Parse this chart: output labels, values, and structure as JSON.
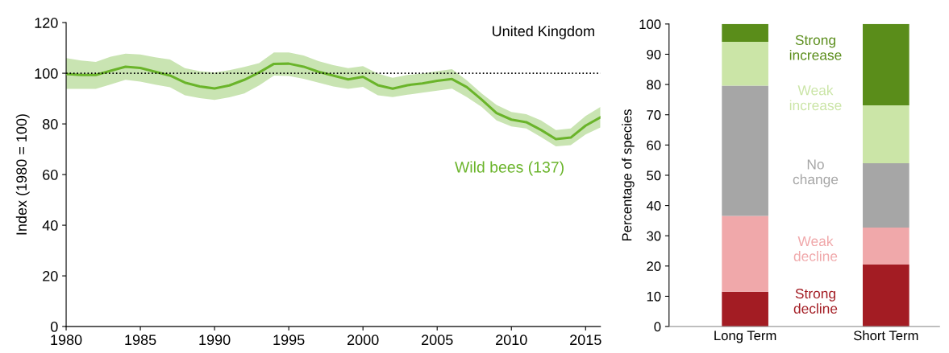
{
  "chart_data": [
    {
      "type": "line",
      "title": "United Kingdom",
      "ylabel": "Index (1980 = 100)",
      "x": [
        1980,
        1981,
        1982,
        1983,
        1984,
        1985,
        1986,
        1987,
        1988,
        1989,
        1990,
        1991,
        1992,
        1993,
        1994,
        1995,
        1996,
        1997,
        1998,
        1999,
        2000,
        2001,
        2002,
        2003,
        2004,
        2005,
        2006,
        2007,
        2008,
        2009,
        2010,
        2011,
        2012,
        2013,
        2014,
        2015,
        2016
      ],
      "series": [
        {
          "name": "Wild bees (137)",
          "color": "#6ab42a",
          "values": [
            99.7,
            99.3,
            99.3,
            101,
            102.6,
            102.1,
            100.6,
            99.1,
            96.3,
            94.8,
            94.0,
            95.2,
            97.4,
            100.3,
            103.7,
            103.8,
            102.6,
            100.6,
            99.1,
            97.6,
            98.6,
            95.3,
            93.9,
            95.3,
            96.0,
            97.0,
            97.7,
            94.5,
            89.6,
            84.3,
            81.7,
            80.7,
            77.6,
            74.0,
            74.6,
            79.3,
            82.6
          ],
          "upper": [
            106,
            105,
            104.5,
            106.5,
            107.7,
            107.4,
            106.3,
            105.4,
            102,
            100.8,
            100.3,
            101.2,
            102.5,
            104,
            108.2,
            108.2,
            107,
            104.8,
            103.2,
            102,
            102.8,
            99.9,
            98.2,
            99.3,
            99.9,
            100.8,
            101.6,
            97.2,
            92,
            87.5,
            84.7,
            83.8,
            81.4,
            77.6,
            78.2,
            83.1,
            86.7
          ],
          "lower": [
            93.8,
            93.8,
            93.8,
            95.6,
            97.4,
            96.7,
            95.5,
            94.5,
            91.3,
            90.2,
            89.5,
            90.5,
            92,
            95.2,
            99.1,
            98.9,
            97.8,
            96.3,
            94.8,
            93.8,
            94.6,
            91.3,
            90.6,
            91.5,
            92.3,
            93.1,
            93.9,
            90.6,
            86.7,
            81.4,
            79,
            78.2,
            74.8,
            71.1,
            71.6,
            75.8,
            78.6
          ]
        }
      ],
      "xlim": [
        1980,
        2016
      ],
      "xticks": [
        1980,
        1985,
        1990,
        1995,
        2000,
        2005,
        2010,
        2015
      ],
      "ylim": [
        0,
        120
      ],
      "yticks": [
        0,
        20,
        40,
        60,
        80,
        100,
        120
      ],
      "ref_lines": [
        {
          "axis": "y",
          "value": 100,
          "line_style": "dotted",
          "color": "#000000"
        }
      ],
      "grid": false,
      "legend": false
    },
    {
      "type": "bar",
      "stacked": true,
      "ylabel": "Percentage of species",
      "categories": [
        "Long Term",
        "Short Term"
      ],
      "series": [
        {
          "name": "Strong decline",
          "color": "#a31c23",
          "values": [
            11.5,
            20.5
          ]
        },
        {
          "name": "Weak decline",
          "color": "#f0a8aa",
          "values": [
            25.1,
            12.2
          ]
        },
        {
          "name": "No change",
          "color": "#a6a6a6",
          "values": [
            43.0,
            21.3
          ]
        },
        {
          "name": "Weak increase",
          "color": "#cbe5a7",
          "values": [
            14.5,
            19.1
          ]
        },
        {
          "name": "Strong increase",
          "color": "#5a8d1a",
          "values": [
            5.9,
            26.9
          ]
        }
      ],
      "ylim": [
        0,
        100
      ],
      "yticks": [
        0,
        10,
        20,
        30,
        40,
        50,
        60,
        70,
        80,
        90,
        100
      ],
      "grid": false,
      "legend": false
    }
  ]
}
